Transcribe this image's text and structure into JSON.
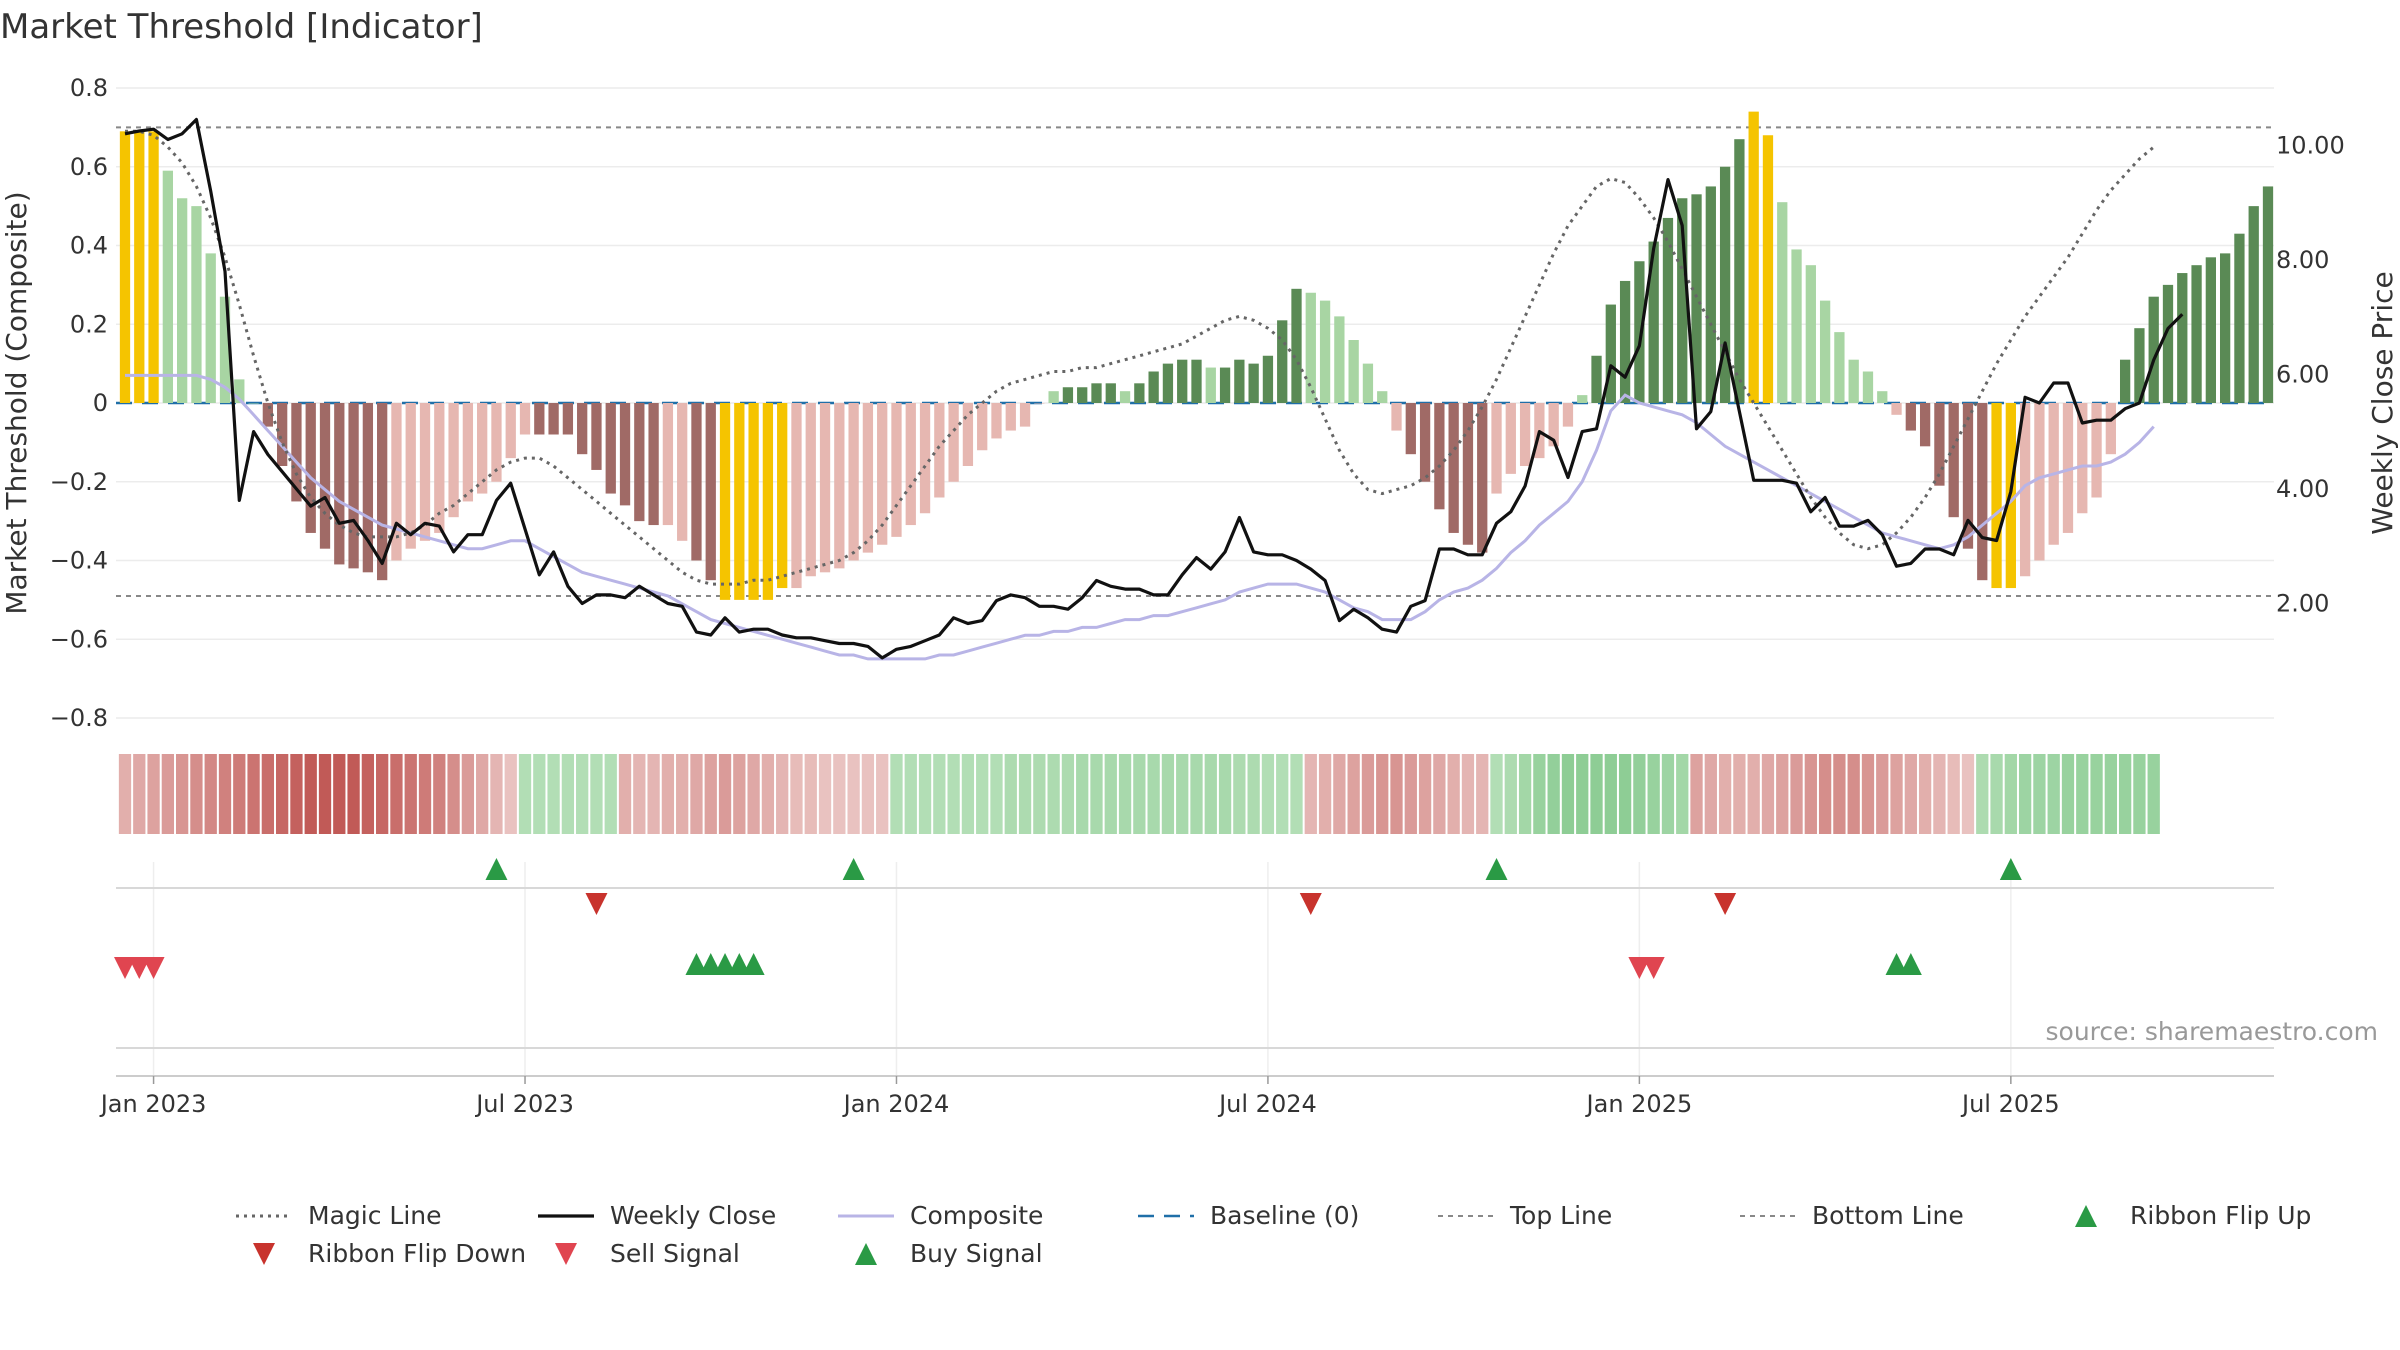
{
  "chart_data": {
    "type": "bar",
    "title": "Market Threshold [Indicator]",
    "ylabel": "Market Threshold (Composite)",
    "y2label": "Weekly Close Price",
    "source": "source: sharemaestro.com",
    "ylim": [
      -0.8,
      0.8
    ],
    "y2lim": [
      0.0,
      11.0
    ],
    "yticks": [
      "0.8",
      "0.6",
      "0.4",
      "0.2",
      "0",
      "−0.2",
      "−0.4",
      "−0.6",
      "−0.8"
    ],
    "yticks_values": [
      0.8,
      0.6,
      0.4,
      0.2,
      0,
      -0.2,
      -0.4,
      -0.6,
      -0.8
    ],
    "y2ticks": [
      "10.00",
      "8.00",
      "6.00",
      "4.00",
      "2.00"
    ],
    "y2ticks_values": [
      10,
      8,
      6,
      4,
      2
    ],
    "xticks": [
      "Jan 2023",
      "Jul 2023",
      "Jan 2024",
      "Jul 2024",
      "Jan 2025",
      "Jul 2025"
    ],
    "xticks_week_index": [
      2,
      28,
      54,
      80,
      106,
      132
    ],
    "top_line": 0.7,
    "bottom_line": -0.49,
    "colors": {
      "yellow": "#f5c400",
      "dark_green": "#5a8a55",
      "light_green": "#a8d5a3",
      "dark_red": "#a06a66",
      "light_red": "#e6b7b1",
      "close": "#111111",
      "composite": "#b8b4e6",
      "magic": "#666666",
      "baseline": "#1f6fa8",
      "threshold": "#888888",
      "flip_up": "#2a9a45",
      "flip_down": "#c8332d",
      "sell": "#e04550",
      "buy": "#2a9a45"
    },
    "bars": [
      {
        "v": 0.69,
        "c": "Y"
      },
      {
        "v": 0.69,
        "c": "Y"
      },
      {
        "v": 0.69,
        "c": "Y"
      },
      {
        "v": 0.59,
        "c": "LG"
      },
      {
        "v": 0.52,
        "c": "LG"
      },
      {
        "v": 0.5,
        "c": "LG"
      },
      {
        "v": 0.38,
        "c": "LG"
      },
      {
        "v": 0.27,
        "c": "LG"
      },
      {
        "v": 0.06,
        "c": "LG"
      },
      {
        "v": 0.0,
        "c": "LG"
      },
      {
        "v": -0.06,
        "c": "DR"
      },
      {
        "v": -0.16,
        "c": "DR"
      },
      {
        "v": -0.25,
        "c": "DR"
      },
      {
        "v": -0.33,
        "c": "DR"
      },
      {
        "v": -0.37,
        "c": "DR"
      },
      {
        "v": -0.41,
        "c": "DR"
      },
      {
        "v": -0.42,
        "c": "DR"
      },
      {
        "v": -0.43,
        "c": "DR"
      },
      {
        "v": -0.45,
        "c": "DR"
      },
      {
        "v": -0.4,
        "c": "LR"
      },
      {
        "v": -0.37,
        "c": "LR"
      },
      {
        "v": -0.35,
        "c": "LR"
      },
      {
        "v": -0.33,
        "c": "LR"
      },
      {
        "v": -0.29,
        "c": "LR"
      },
      {
        "v": -0.25,
        "c": "LR"
      },
      {
        "v": -0.23,
        "c": "LR"
      },
      {
        "v": -0.2,
        "c": "LR"
      },
      {
        "v": -0.14,
        "c": "LR"
      },
      {
        "v": -0.08,
        "c": "LR"
      },
      {
        "v": -0.08,
        "c": "DR"
      },
      {
        "v": -0.08,
        "c": "DR"
      },
      {
        "v": -0.08,
        "c": "DR"
      },
      {
        "v": -0.13,
        "c": "DR"
      },
      {
        "v": -0.17,
        "c": "DR"
      },
      {
        "v": -0.23,
        "c": "DR"
      },
      {
        "v": -0.26,
        "c": "DR"
      },
      {
        "v": -0.3,
        "c": "DR"
      },
      {
        "v": -0.31,
        "c": "DR"
      },
      {
        "v": -0.31,
        "c": "LR"
      },
      {
        "v": -0.35,
        "c": "LR"
      },
      {
        "v": -0.4,
        "c": "DR"
      },
      {
        "v": -0.45,
        "c": "DR"
      },
      {
        "v": -0.5,
        "c": "Y"
      },
      {
        "v": -0.5,
        "c": "Y"
      },
      {
        "v": -0.5,
        "c": "Y"
      },
      {
        "v": -0.5,
        "c": "Y"
      },
      {
        "v": -0.47,
        "c": "Y"
      },
      {
        "v": -0.47,
        "c": "LR"
      },
      {
        "v": -0.44,
        "c": "LR"
      },
      {
        "v": -0.43,
        "c": "LR"
      },
      {
        "v": -0.42,
        "c": "LR"
      },
      {
        "v": -0.4,
        "c": "LR"
      },
      {
        "v": -0.38,
        "c": "LR"
      },
      {
        "v": -0.36,
        "c": "LR"
      },
      {
        "v": -0.34,
        "c": "LR"
      },
      {
        "v": -0.31,
        "c": "LR"
      },
      {
        "v": -0.28,
        "c": "LR"
      },
      {
        "v": -0.24,
        "c": "LR"
      },
      {
        "v": -0.2,
        "c": "LR"
      },
      {
        "v": -0.16,
        "c": "LR"
      },
      {
        "v": -0.12,
        "c": "LR"
      },
      {
        "v": -0.09,
        "c": "LR"
      },
      {
        "v": -0.07,
        "c": "LR"
      },
      {
        "v": -0.06,
        "c": "LR"
      },
      {
        "v": 0.0,
        "c": "LR"
      },
      {
        "v": 0.03,
        "c": "LG"
      },
      {
        "v": 0.04,
        "c": "DG"
      },
      {
        "v": 0.04,
        "c": "DG"
      },
      {
        "v": 0.05,
        "c": "DG"
      },
      {
        "v": 0.05,
        "c": "DG"
      },
      {
        "v": 0.03,
        "c": "LG"
      },
      {
        "v": 0.05,
        "c": "DG"
      },
      {
        "v": 0.08,
        "c": "DG"
      },
      {
        "v": 0.1,
        "c": "DG"
      },
      {
        "v": 0.11,
        "c": "DG"
      },
      {
        "v": 0.11,
        "c": "DG"
      },
      {
        "v": 0.09,
        "c": "LG"
      },
      {
        "v": 0.09,
        "c": "DG"
      },
      {
        "v": 0.11,
        "c": "DG"
      },
      {
        "v": 0.1,
        "c": "DG"
      },
      {
        "v": 0.12,
        "c": "DG"
      },
      {
        "v": 0.21,
        "c": "DG"
      },
      {
        "v": 0.29,
        "c": "DG"
      },
      {
        "v": 0.28,
        "c": "LG"
      },
      {
        "v": 0.26,
        "c": "LG"
      },
      {
        "v": 0.22,
        "c": "LG"
      },
      {
        "v": 0.16,
        "c": "LG"
      },
      {
        "v": 0.1,
        "c": "LG"
      },
      {
        "v": 0.03,
        "c": "LG"
      },
      {
        "v": -0.07,
        "c": "LR"
      },
      {
        "v": -0.13,
        "c": "DR"
      },
      {
        "v": -0.2,
        "c": "DR"
      },
      {
        "v": -0.27,
        "c": "DR"
      },
      {
        "v": -0.33,
        "c": "DR"
      },
      {
        "v": -0.36,
        "c": "DR"
      },
      {
        "v": -0.38,
        "c": "DR"
      },
      {
        "v": -0.23,
        "c": "LR"
      },
      {
        "v": -0.18,
        "c": "LR"
      },
      {
        "v": -0.16,
        "c": "LR"
      },
      {
        "v": -0.14,
        "c": "LR"
      },
      {
        "v": -0.11,
        "c": "LR"
      },
      {
        "v": -0.06,
        "c": "LR"
      },
      {
        "v": 0.02,
        "c": "LG"
      },
      {
        "v": 0.12,
        "c": "DG"
      },
      {
        "v": 0.25,
        "c": "DG"
      },
      {
        "v": 0.31,
        "c": "DG"
      },
      {
        "v": 0.36,
        "c": "DG"
      },
      {
        "v": 0.41,
        "c": "DG"
      },
      {
        "v": 0.47,
        "c": "DG"
      },
      {
        "v": 0.52,
        "c": "DG"
      },
      {
        "v": 0.53,
        "c": "DG"
      },
      {
        "v": 0.55,
        "c": "DG"
      },
      {
        "v": 0.6,
        "c": "DG"
      },
      {
        "v": 0.67,
        "c": "DG"
      },
      {
        "v": 0.74,
        "c": "Y"
      },
      {
        "v": 0.68,
        "c": "Y"
      },
      {
        "v": 0.51,
        "c": "LG"
      },
      {
        "v": 0.39,
        "c": "LG"
      },
      {
        "v": 0.35,
        "c": "LG"
      },
      {
        "v": 0.26,
        "c": "LG"
      },
      {
        "v": 0.18,
        "c": "LG"
      },
      {
        "v": 0.11,
        "c": "LG"
      },
      {
        "v": 0.08,
        "c": "LG"
      },
      {
        "v": 0.03,
        "c": "LG"
      },
      {
        "v": -0.03,
        "c": "LR"
      },
      {
        "v": -0.07,
        "c": "DR"
      },
      {
        "v": -0.11,
        "c": "DR"
      },
      {
        "v": -0.21,
        "c": "DR"
      },
      {
        "v": -0.29,
        "c": "DR"
      },
      {
        "v": -0.37,
        "c": "DR"
      },
      {
        "v": -0.45,
        "c": "DR"
      },
      {
        "v": -0.47,
        "c": "Y"
      },
      {
        "v": -0.47,
        "c": "Y"
      },
      {
        "v": -0.44,
        "c": "LR"
      },
      {
        "v": -0.4,
        "c": "LR"
      },
      {
        "v": -0.36,
        "c": "LR"
      },
      {
        "v": -0.33,
        "c": "LR"
      },
      {
        "v": -0.28,
        "c": "LR"
      },
      {
        "v": -0.24,
        "c": "LR"
      },
      {
        "v": -0.13,
        "c": "LR"
      },
      {
        "v": 0.11,
        "c": "DG"
      },
      {
        "v": 0.19,
        "c": "DG"
      },
      {
        "v": 0.27,
        "c": "DG"
      },
      {
        "v": 0.3,
        "c": "DG"
      },
      {
        "v": 0.33,
        "c": "DG"
      },
      {
        "v": 0.35,
        "c": "DG"
      },
      {
        "v": 0.37,
        "c": "DG"
      },
      {
        "v": 0.38,
        "c": "DG"
      },
      {
        "v": 0.43,
        "c": "DG"
      },
      {
        "v": 0.5,
        "c": "DG"
      },
      {
        "v": 0.55,
        "c": "DG"
      }
    ],
    "weekly_close": [
      10.2,
      10.25,
      10.28,
      10.1,
      10.2,
      10.45,
      9.2,
      7.8,
      3.8,
      5.0,
      4.6,
      4.3,
      4.0,
      3.7,
      3.85,
      3.4,
      3.45,
      3.1,
      2.7,
      3.4,
      3.2,
      3.4,
      3.35,
      2.9,
      3.2,
      3.2,
      3.8,
      4.1,
      3.3,
      2.5,
      2.9,
      2.3,
      2.0,
      2.15,
      2.15,
      2.1,
      2.3,
      2.15,
      2.0,
      1.95,
      1.5,
      1.45,
      1.75,
      1.5,
      1.55,
      1.55,
      1.45,
      1.4,
      1.4,
      1.35,
      1.3,
      1.3,
      1.25,
      1.05,
      1.2,
      1.25,
      1.35,
      1.45,
      1.75,
      1.65,
      1.7,
      2.05,
      2.15,
      2.1,
      1.95,
      1.95,
      1.9,
      2.1,
      2.4,
      2.3,
      2.25,
      2.25,
      2.15,
      2.15,
      2.5,
      2.8,
      2.6,
      2.9,
      3.5,
      2.9,
      2.85,
      2.85,
      2.75,
      2.6,
      2.4,
      1.7,
      1.9,
      1.75,
      1.55,
      1.5,
      1.95,
      2.05,
      2.95,
      2.95,
      2.85,
      2.85,
      3.4,
      3.6,
      4.05,
      5.0,
      4.85,
      4.2,
      5.0,
      5.05,
      6.15,
      5.95,
      6.5,
      8.2,
      9.4,
      8.6,
      5.05,
      5.35,
      6.55,
      5.35,
      4.15,
      4.15,
      4.15,
      4.1,
      3.6,
      3.85,
      3.35,
      3.35,
      3.45,
      3.2,
      2.65,
      2.7,
      2.95,
      2.95,
      2.85,
      3.45,
      3.15,
      3.1,
      3.95,
      5.6,
      5.5,
      5.85,
      5.85,
      5.15,
      5.2,
      5.2,
      5.4,
      5.5,
      6.25,
      6.8,
      7.05
    ],
    "composite": [
      0.07,
      0.07,
      0.07,
      0.07,
      0.07,
      0.07,
      0.06,
      0.04,
      0.01,
      -0.03,
      -0.07,
      -0.11,
      -0.15,
      -0.19,
      -0.22,
      -0.25,
      -0.27,
      -0.29,
      -0.31,
      -0.32,
      -0.33,
      -0.34,
      -0.35,
      -0.36,
      -0.37,
      -0.37,
      -0.36,
      -0.35,
      -0.35,
      -0.37,
      -0.39,
      -0.41,
      -0.43,
      -0.44,
      -0.45,
      -0.46,
      -0.47,
      -0.48,
      -0.49,
      -0.51,
      -0.53,
      -0.55,
      -0.56,
      -0.57,
      -0.58,
      -0.59,
      -0.6,
      -0.61,
      -0.62,
      -0.63,
      -0.64,
      -0.64,
      -0.65,
      -0.65,
      -0.65,
      -0.65,
      -0.65,
      -0.64,
      -0.64,
      -0.63,
      -0.62,
      -0.61,
      -0.6,
      -0.59,
      -0.59,
      -0.58,
      -0.58,
      -0.57,
      -0.57,
      -0.56,
      -0.55,
      -0.55,
      -0.54,
      -0.54,
      -0.53,
      -0.52,
      -0.51,
      -0.5,
      -0.48,
      -0.47,
      -0.46,
      -0.46,
      -0.46,
      -0.47,
      -0.48,
      -0.5,
      -0.52,
      -0.53,
      -0.55,
      -0.55,
      -0.55,
      -0.53,
      -0.5,
      -0.48,
      -0.47,
      -0.45,
      -0.42,
      -0.38,
      -0.35,
      -0.31,
      -0.28,
      -0.25,
      -0.2,
      -0.12,
      -0.02,
      0.02,
      0.0,
      -0.01,
      -0.02,
      -0.03,
      -0.05,
      -0.08,
      -0.11,
      -0.13,
      -0.15,
      -0.17,
      -0.19,
      -0.21,
      -0.23,
      -0.25,
      -0.27,
      -0.29,
      -0.31,
      -0.33,
      -0.34,
      -0.35,
      -0.36,
      -0.37,
      -0.36,
      -0.34,
      -0.31,
      -0.28,
      -0.25,
      -0.21,
      -0.19,
      -0.18,
      -0.17,
      -0.16,
      -0.16,
      -0.15,
      -0.13,
      -0.1,
      -0.06
    ],
    "magic_line": [
      0.69,
      0.69,
      0.68,
      0.65,
      0.61,
      0.55,
      0.47,
      0.37,
      0.25,
      0.12,
      0.0,
      -0.1,
      -0.18,
      -0.24,
      -0.28,
      -0.31,
      -0.33,
      -0.34,
      -0.34,
      -0.34,
      -0.33,
      -0.31,
      -0.28,
      -0.26,
      -0.23,
      -0.2,
      -0.17,
      -0.15,
      -0.14,
      -0.14,
      -0.16,
      -0.19,
      -0.22,
      -0.25,
      -0.28,
      -0.31,
      -0.34,
      -0.37,
      -0.4,
      -0.43,
      -0.45,
      -0.46,
      -0.46,
      -0.46,
      -0.45,
      -0.45,
      -0.44,
      -0.43,
      -0.42,
      -0.41,
      -0.4,
      -0.38,
      -0.35,
      -0.31,
      -0.26,
      -0.21,
      -0.16,
      -0.11,
      -0.07,
      -0.03,
      0.0,
      0.03,
      0.05,
      0.06,
      0.07,
      0.08,
      0.08,
      0.09,
      0.09,
      0.1,
      0.11,
      0.12,
      0.13,
      0.14,
      0.15,
      0.17,
      0.19,
      0.21,
      0.22,
      0.21,
      0.19,
      0.16,
      0.11,
      0.04,
      -0.04,
      -0.12,
      -0.18,
      -0.22,
      -0.23,
      -0.22,
      -0.21,
      -0.19,
      -0.16,
      -0.12,
      -0.07,
      -0.01,
      0.06,
      0.14,
      0.22,
      0.3,
      0.38,
      0.45,
      0.5,
      0.55,
      0.57,
      0.56,
      0.52,
      0.47,
      0.41,
      0.34,
      0.27,
      0.2,
      0.13,
      0.06,
      0.0,
      -0.06,
      -0.12,
      -0.18,
      -0.24,
      -0.29,
      -0.33,
      -0.36,
      -0.37,
      -0.36,
      -0.33,
      -0.29,
      -0.24,
      -0.18,
      -0.11,
      -0.04,
      0.03,
      0.1,
      0.16,
      0.22,
      0.27,
      0.32,
      0.37,
      0.43,
      0.49,
      0.54,
      0.58,
      0.62,
      0.65
    ],
    "ribbon_intensity": [
      0.35,
      0.4,
      0.45,
      0.5,
      0.55,
      0.6,
      0.65,
      0.7,
      0.75,
      0.8,
      0.85,
      0.9,
      0.95,
      1,
      1,
      1,
      1,
      0.95,
      0.9,
      0.85,
      0.8,
      0.75,
      0.7,
      0.6,
      0.5,
      0.4,
      0.3,
      0.2,
      0.35,
      0.35,
      0.35,
      0.35,
      0.35,
      0.35,
      0.35,
      0.35,
      0.3,
      0.3,
      0.35,
      0.35,
      0.4,
      0.45,
      0.5,
      0.45,
      0.4,
      0.35,
      0.3,
      0.25,
      0.25,
      0.2,
      0.2,
      0.2,
      0.2,
      0.2,
      0.35,
      0.35,
      0.35,
      0.35,
      0.35,
      0.35,
      0.35,
      0.35,
      0.4,
      0.4,
      0.4,
      0.4,
      0.4,
      0.45,
      0.45,
      0.45,
      0.45,
      0.45,
      0.45,
      0.45,
      0.45,
      0.45,
      0.45,
      0.45,
      0.4,
      0.4,
      0.35,
      0.35,
      0.35,
      0.3,
      0.35,
      0.4,
      0.45,
      0.5,
      0.55,
      0.55,
      0.5,
      0.45,
      0.4,
      0.35,
      0.3,
      0.3,
      0.35,
      0.4,
      0.5,
      0.6,
      0.65,
      0.7,
      0.7,
      0.7,
      0.7,
      0.7,
      0.65,
      0.6,
      0.55,
      0.5,
      0.45,
      0.4,
      0.35,
      0.35,
      0.35,
      0.4,
      0.45,
      0.5,
      0.55,
      0.6,
      0.6,
      0.6,
      0.55,
      0.5,
      0.45,
      0.4,
      0.35,
      0.3,
      0.25,
      0.2,
      0.4,
      0.45,
      0.5,
      0.55,
      0.55,
      0.55,
      0.6,
      0.6,
      0.6,
      0.6,
      0.6,
      0.6,
      0.6
    ],
    "ribbon_sign": [
      -1,
      -1,
      -1,
      -1,
      -1,
      -1,
      -1,
      -1,
      -1,
      -1,
      -1,
      -1,
      -1,
      -1,
      -1,
      -1,
      -1,
      -1,
      -1,
      -1,
      -1,
      -1,
      -1,
      -1,
      -1,
      -1,
      -1,
      -1,
      1,
      1,
      1,
      1,
      1,
      1,
      1,
      -1,
      -1,
      -1,
      -1,
      -1,
      -1,
      -1,
      -1,
      -1,
      -1,
      -1,
      -1,
      -1,
      -1,
      -1,
      -1,
      -1,
      -1,
      -1,
      1,
      1,
      1,
      1,
      1,
      1,
      1,
      1,
      1,
      1,
      1,
      1,
      1,
      1,
      1,
      1,
      1,
      1,
      1,
      1,
      1,
      1,
      1,
      1,
      1,
      1,
      1,
      1,
      1,
      -1,
      -1,
      -1,
      -1,
      -1,
      -1,
      -1,
      -1,
      -1,
      -1,
      -1,
      -1,
      -1,
      1,
      1,
      1,
      1,
      1,
      1,
      1,
      1,
      1,
      1,
      1,
      1,
      1,
      1,
      -1,
      -1,
      -1,
      -1,
      -1,
      -1,
      -1,
      -1,
      -1,
      -1,
      -1,
      -1,
      -1,
      -1,
      -1,
      -1,
      -1,
      -1,
      -1,
      -1,
      1,
      1,
      1,
      1,
      1,
      1,
      1,
      1,
      1,
      1,
      1,
      1,
      1
    ],
    "ribbon_flip_up_weeks": [
      26,
      51,
      96,
      132
    ],
    "ribbon_flip_down_weeks": [
      33,
      83,
      112
    ],
    "sell_signal_weeks": [
      0,
      1,
      2,
      106,
      107
    ],
    "buy_signal_weeks": [
      40,
      41,
      42,
      43,
      44,
      124,
      125
    ],
    "legend": [
      {
        "label": "Magic Line",
        "style": "dotted-gray"
      },
      {
        "label": "Weekly Close",
        "style": "solid-black"
      },
      {
        "label": "Composite",
        "style": "solid-lavender"
      },
      {
        "label": "Baseline (0)",
        "style": "dashed-blue"
      },
      {
        "label": "Top Line",
        "style": "dashed-gray"
      },
      {
        "label": "Bottom Line",
        "style": "dashed-gray"
      },
      {
        "label": "Ribbon Flip Up",
        "style": "triangle-up-green"
      },
      {
        "label": "Ribbon Flip Down",
        "style": "triangle-down-red"
      },
      {
        "label": "Sell Signal",
        "style": "triangle-down-lightred"
      },
      {
        "label": "Buy Signal",
        "style": "triangle-up-green"
      }
    ]
  }
}
